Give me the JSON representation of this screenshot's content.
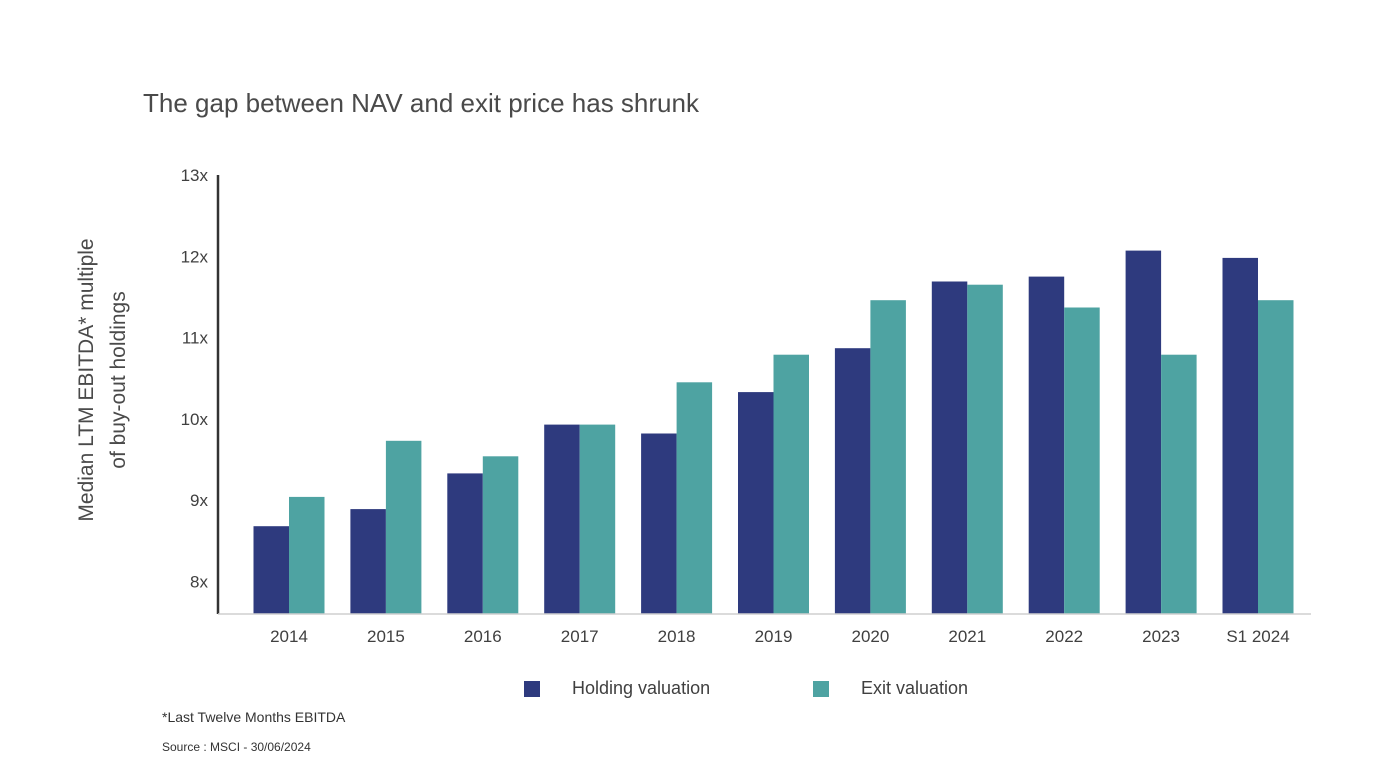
{
  "chart_data": {
    "type": "bar",
    "title": "The gap between NAV and exit price has shrunk",
    "xlabel": "",
    "ylabel_lines": [
      "Median LTM EBITDA* multiple",
      "of buy-out holdings"
    ],
    "categories": [
      "2014",
      "2015",
      "2016",
      "2017",
      "2018",
      "2019",
      "2020",
      "2021",
      "2022",
      "2023",
      "S1 2024"
    ],
    "series": [
      {
        "name": "Holding valuation",
        "color": "#2e3a7e",
        "values": [
          8.68,
          8.89,
          9.33,
          9.93,
          9.82,
          10.33,
          10.87,
          11.69,
          11.75,
          12.07,
          11.98
        ]
      },
      {
        "name": "Exit valuation",
        "color": "#4ea3a2",
        "values": [
          9.04,
          9.73,
          9.54,
          9.93,
          10.45,
          10.79,
          11.46,
          11.65,
          11.37,
          10.79,
          11.46
        ]
      }
    ],
    "ylim": [
      7.6,
      13
    ],
    "yticks": [
      8,
      9,
      10,
      11,
      12,
      13
    ],
    "ytick_labels": [
      "8x",
      "9x",
      "10x",
      "11x",
      "12x",
      "13x"
    ],
    "legend_position": "bottom",
    "grid": false
  },
  "footnote": "*Last Twelve Months EBITDA",
  "source": "Source : MSCI - 30/06/2024"
}
